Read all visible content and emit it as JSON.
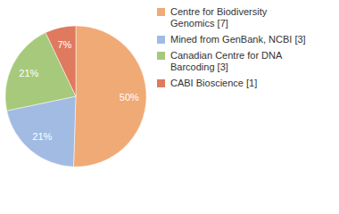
{
  "chart_data": {
    "type": "pie",
    "categories": [
      "Centre for Biodiversity Genomics [7]",
      "Mined from GenBank, NCBI [3]",
      "Canadian Centre for DNA Barcoding [3]",
      "CABI Bioscience [1]"
    ],
    "values": [
      50,
      21,
      21,
      7
    ],
    "value_labels": [
      "50%",
      "21%",
      "21%",
      "7%"
    ],
    "colors": [
      "#f0aa76",
      "#a1bbe3",
      "#a7c97b",
      "#df7a5f"
    ],
    "data_labels": true,
    "legend": "right"
  }
}
